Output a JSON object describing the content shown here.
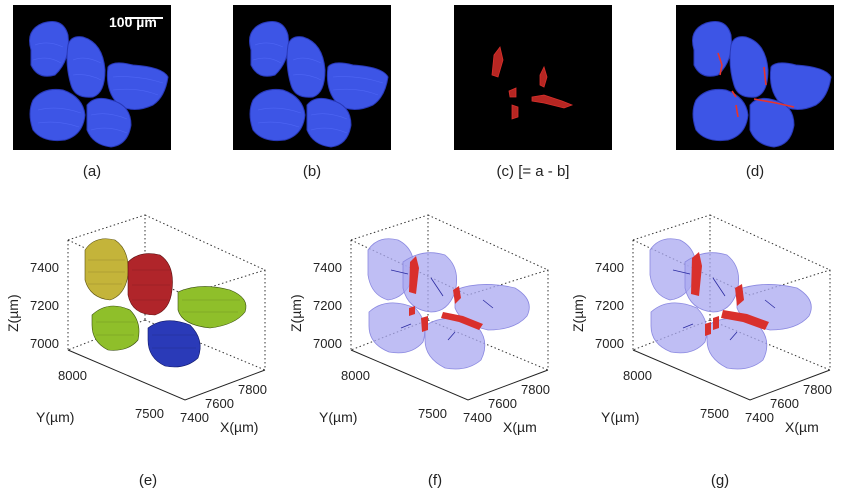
{
  "top_panels": [
    {
      "caption": "(a)",
      "content": "grains-blue",
      "scalebar": "100 µm"
    },
    {
      "caption": "(b)",
      "content": "grains-blue"
    },
    {
      "caption": "(c) [= a - b]",
      "content": "red-boundaries"
    },
    {
      "caption": "(d)",
      "content": "grains-blue-red-boundaries"
    }
  ],
  "bottom_panels": [
    {
      "caption": "(e)",
      "content": "mesh-grains"
    },
    {
      "caption": "(f)",
      "content": "transparent-grains"
    },
    {
      "caption": "(g)",
      "content": "transparent-grains"
    }
  ],
  "axes": {
    "z_label": "Z(µm)",
    "y_label": "Y(µm)",
    "x_label": "X(µm)",
    "x_label_cut": "X(µm",
    "z_ticks": [
      "7400",
      "7200",
      "7000"
    ],
    "y_ticks": [
      "8000",
      "7500"
    ],
    "x_ticks": [
      "7400",
      "7600",
      "7800"
    ]
  },
  "colors": {
    "grain_blue": "#3d55e6",
    "boundary_red": "#d9302c",
    "mesh_yellow": "#c4b43a",
    "mesh_red": "#b0252a",
    "mesh_green": "#8fbf2a",
    "mesh_blue": "#2a3ab8",
    "transparent_grain": "#a9a8f0"
  }
}
